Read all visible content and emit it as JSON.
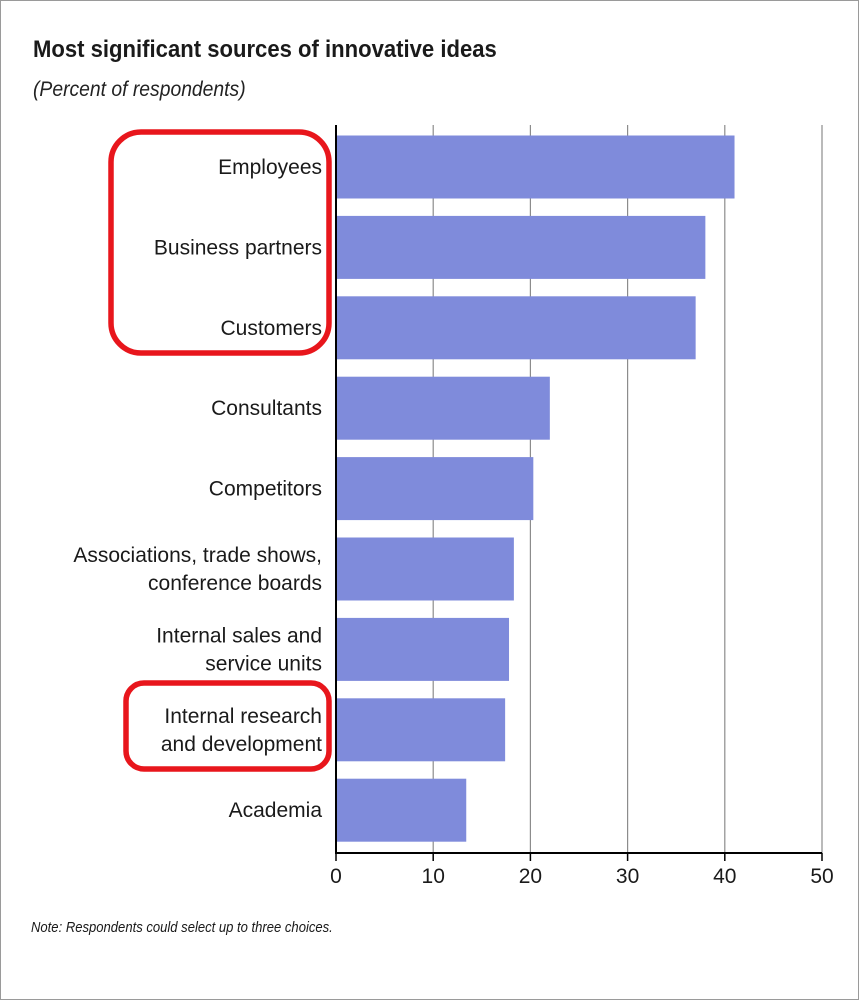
{
  "colors": {
    "bar": "#7f8bdb",
    "grid": "#8c8c8c",
    "axis": "#000000",
    "highlight": "#e8161c"
  },
  "chart_data": {
    "type": "bar",
    "orientation": "horizontal",
    "title": "Most significant sources of innovative ideas",
    "subtitle": "(Percent of respondents)",
    "note": "Note: Respondents could select up to three choices.",
    "categories": [
      [
        "Employees"
      ],
      [
        "Business partners"
      ],
      [
        "Customers"
      ],
      [
        "Consultants"
      ],
      [
        "Competitors"
      ],
      [
        "Associations, trade shows,",
        "conference boards"
      ],
      [
        "Internal sales and",
        "service units"
      ],
      [
        "Internal research",
        "and development"
      ],
      [
        "Academia"
      ]
    ],
    "values": [
      41,
      38,
      37,
      22,
      20.3,
      18.3,
      17.8,
      17.4,
      13.4
    ],
    "xlim": [
      0,
      50
    ],
    "xticks": [
      0,
      10,
      20,
      30,
      40,
      50
    ],
    "grid": "vertical",
    "highlighted_groups": [
      {
        "items": [
          "Employees",
          "Business partners",
          "Customers"
        ]
      },
      {
        "items": [
          "Internal research and development"
        ]
      }
    ]
  }
}
